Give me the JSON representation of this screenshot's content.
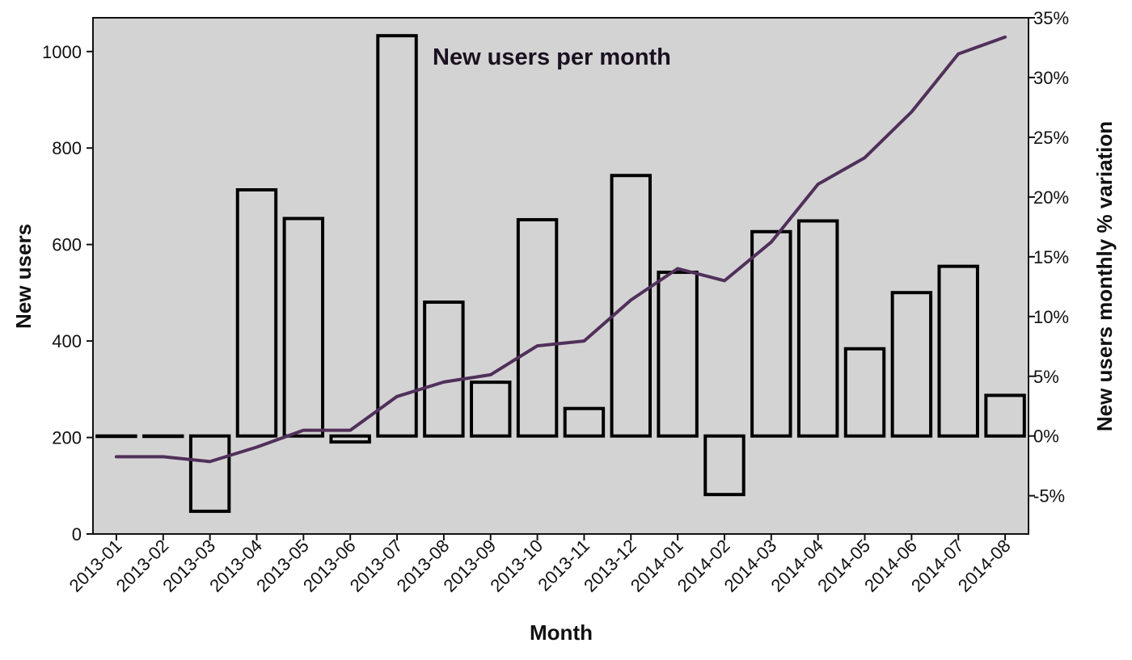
{
  "chart_data": {
    "type": "bar",
    "title": "New users per month",
    "xlabel": "Month",
    "ylabel": "New users",
    "y2label": "New users monthly % variation",
    "categories": [
      "2013-01",
      "2013-02",
      "2013-03",
      "2013-04",
      "2013-05",
      "2013-06",
      "2013-07",
      "2013-08",
      "2013-09",
      "2013-10",
      "2013-11",
      "2013-12",
      "2014-01",
      "2014-02",
      "2014-03",
      "2014-04",
      "2014-05",
      "2014-06",
      "2014-07",
      "2014-08"
    ],
    "ylim": [
      0,
      1070
    ],
    "yticks": [
      0,
      200,
      400,
      600,
      800,
      1000
    ],
    "y2lim": [
      -8.2,
      35
    ],
    "y2ticks": [
      -5,
      0,
      5,
      10,
      15,
      20,
      25,
      30,
      35
    ],
    "y2tick_suffix": "%",
    "series": [
      {
        "type": "bar",
        "axis": "right",
        "baseline": 0,
        "values": [
          0,
          0,
          -6.3,
          20.6,
          18.2,
          -0.5,
          33.5,
          11.2,
          4.5,
          18.1,
          2.3,
          21.8,
          13.7,
          -4.9,
          17.1,
          18.0,
          7.3,
          12.0,
          14.2,
          3.4
        ]
      },
      {
        "type": "line",
        "axis": "left",
        "values": [
          160,
          160,
          150,
          180,
          215,
          215,
          285,
          315,
          330,
          390,
          400,
          485,
          550,
          525,
          605,
          725,
          780,
          875,
          995,
          1030
        ]
      }
    ],
    "colors": {
      "plot_background": "#d3d3d3",
      "bar_fill": "#d3d3d3",
      "bar_edge": "#000000",
      "line": "#50305a"
    },
    "grid": false,
    "legend": "none"
  }
}
